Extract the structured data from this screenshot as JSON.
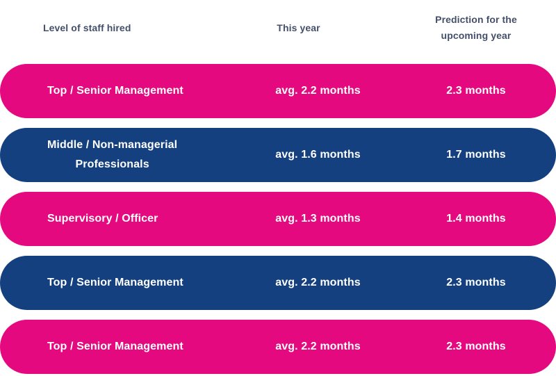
{
  "header": {
    "col1": "Level of staff hired",
    "col2": "This year",
    "col3_line1": "Prediction for the",
    "col3_line2": "upcoming year"
  },
  "colors": {
    "pink": "#e5097f",
    "blue": "#14407f",
    "header_text": "#44506a",
    "row_text": "#ffffff",
    "background": "#ffffff"
  },
  "chart_data": {
    "type": "table",
    "columns": [
      "Level of staff hired",
      "This year",
      "Prediction for the upcoming year"
    ],
    "rows": [
      {
        "label": "Top / Senior Management",
        "label_lines": [
          "Top / Senior Management"
        ],
        "this_year": "avg. 2.2 months",
        "prediction": "2.3 months",
        "color": "pink"
      },
      {
        "label": "Middle / Non-managerial Professionals",
        "label_lines": [
          "Middle / Non-managerial",
          "Professionals"
        ],
        "this_year": "avg. 1.6 months",
        "prediction": "1.7 months",
        "color": "blue"
      },
      {
        "label": "Supervisory / Officer",
        "label_lines": [
          "Supervisory / Officer"
        ],
        "this_year": "avg. 1.3 months",
        "prediction": "1.4 months",
        "color": "pink"
      },
      {
        "label": "Top / Senior Management",
        "label_lines": [
          "Top / Senior Management"
        ],
        "this_year": "avg. 2.2 months",
        "prediction": "2.3 months",
        "color": "blue"
      },
      {
        "label": "Top / Senior Management",
        "label_lines": [
          "Top / Senior Management"
        ],
        "this_year": "avg. 2.2 months",
        "prediction": "2.3 months",
        "color": "pink"
      }
    ]
  }
}
